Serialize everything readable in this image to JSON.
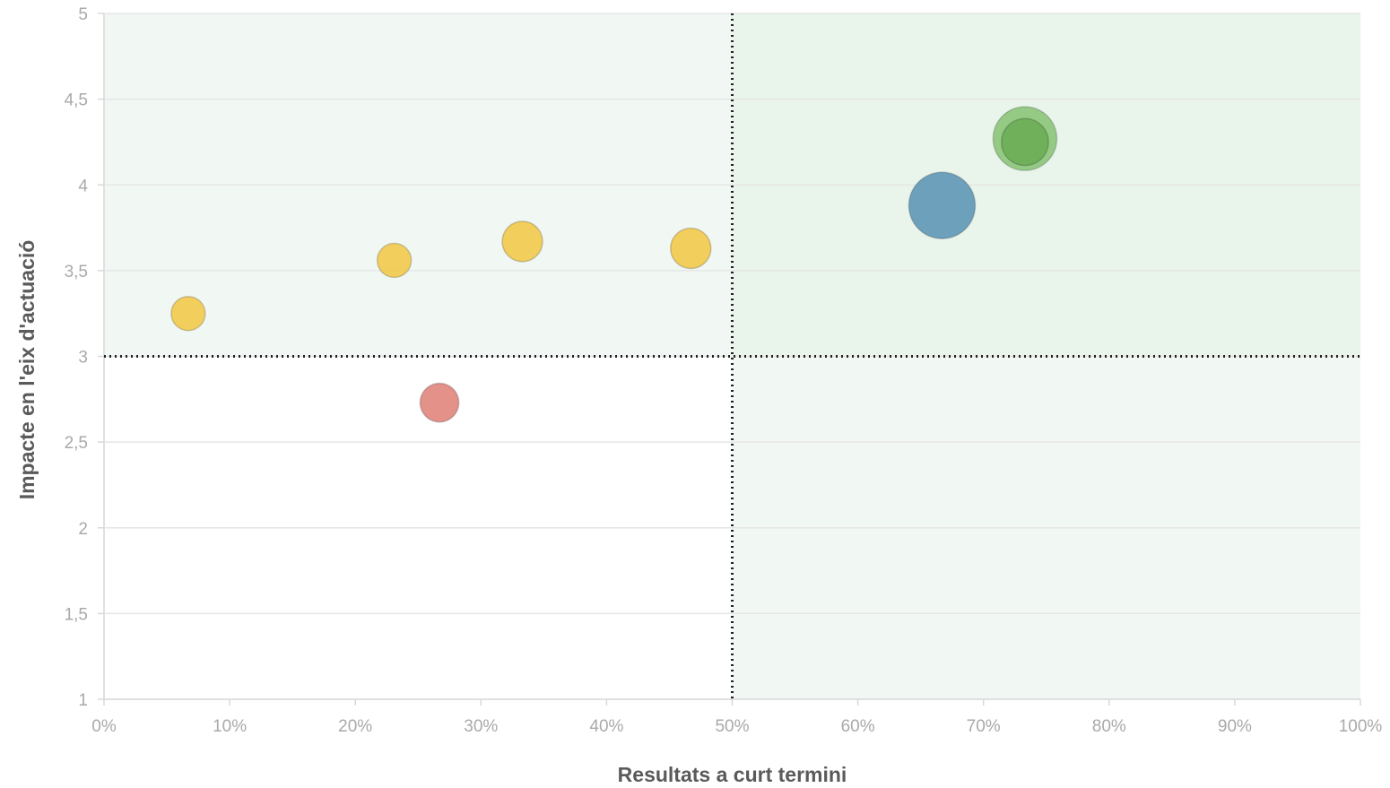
{
  "chart_data": {
    "type": "scatter",
    "subtype": "bubble",
    "title": "",
    "xlabel": "Resultats a curt termini",
    "ylabel": "Impacte en l'eix d'actuació",
    "xlim": [
      0,
      100
    ],
    "ylim": [
      1,
      5
    ],
    "x_ticks": [
      {
        "value": 0,
        "label": "0%"
      },
      {
        "value": 10,
        "label": "10%"
      },
      {
        "value": 20,
        "label": "20%"
      },
      {
        "value": 30,
        "label": "30%"
      },
      {
        "value": 40,
        "label": "40%"
      },
      {
        "value": 50,
        "label": "50%"
      },
      {
        "value": 60,
        "label": "60%"
      },
      {
        "value": 70,
        "label": "70%"
      },
      {
        "value": 80,
        "label": "80%"
      },
      {
        "value": 90,
        "label": "90%"
      },
      {
        "value": 100,
        "label": "100%"
      }
    ],
    "y_ticks": [
      {
        "value": 1,
        "label": "1"
      },
      {
        "value": 1.5,
        "label": "1,5"
      },
      {
        "value": 2,
        "label": "2"
      },
      {
        "value": 2.5,
        "label": "2,5"
      },
      {
        "value": 3,
        "label": "3"
      },
      {
        "value": 3.5,
        "label": "3,5"
      },
      {
        "value": 4,
        "label": "4"
      },
      {
        "value": 4.5,
        "label": "4,5"
      },
      {
        "value": 5,
        "label": "5"
      }
    ],
    "grid": true,
    "legend": "none",
    "reference_lines": {
      "x": 50,
      "y": 3,
      "style": "dotted"
    },
    "quadrant_shading": [
      {
        "x": [
          0,
          50
        ],
        "y": [
          3,
          5
        ],
        "color": "#f1f8f3"
      },
      {
        "x": [
          50,
          100
        ],
        "y": [
          3,
          5
        ],
        "color": "#e9f5eb"
      },
      {
        "x": [
          50,
          100
        ],
        "y": [
          1,
          3
        ],
        "color": "#f1f8f3"
      }
    ],
    "points": [
      {
        "x": 6.7,
        "y": 3.25,
        "size": 1,
        "color": "#f2c94c"
      },
      {
        "x": 23.1,
        "y": 3.56,
        "size": 1,
        "color": "#f2c94c"
      },
      {
        "x": 26.7,
        "y": 2.73,
        "size": 1.3,
        "color": "#e0857c"
      },
      {
        "x": 33.3,
        "y": 3.67,
        "size": 1.4,
        "color": "#f2c94c"
      },
      {
        "x": 46.7,
        "y": 3.63,
        "size": 1.4,
        "color": "#f2c94c"
      },
      {
        "x": 66.7,
        "y": 3.88,
        "size": 3.8,
        "color": "#5e97b6"
      },
      {
        "x": 73.3,
        "y": 4.27,
        "size": 3.5,
        "color": "#8cc57a"
      },
      {
        "x": 73.3,
        "y": 4.25,
        "size": 1.9,
        "color": "#6cad55"
      }
    ]
  }
}
